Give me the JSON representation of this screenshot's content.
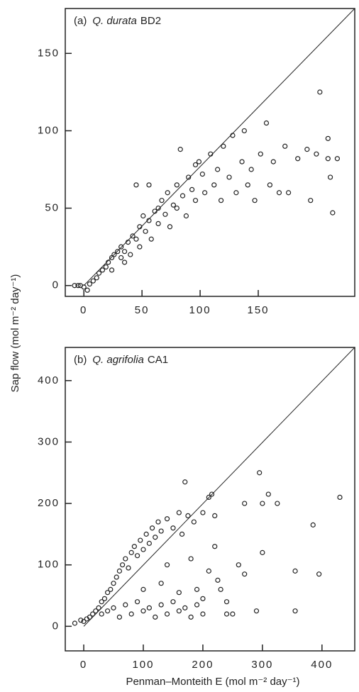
{
  "y_axis_label": "Sap flow (mol m⁻² day⁻¹)",
  "x_axis_label": "Penman–Monteith E (mol m⁻² day⁻¹)",
  "chart_data": [
    {
      "type": "scatter",
      "panel": "(a)",
      "species": "Q. durata",
      "site": "BD2",
      "xlim": [
        -16,
        233
      ],
      "ylim": [
        -7,
        179
      ],
      "xticks": [
        0,
        50,
        100,
        150
      ],
      "yticks": [
        0,
        50,
        100,
        150
      ],
      "color": "#222222",
      "x": [
        -8,
        -5,
        -3,
        0,
        3,
        5,
        8,
        11,
        13,
        16,
        19,
        21,
        24,
        26,
        29,
        32,
        32,
        35,
        38,
        40,
        42,
        45,
        48,
        48,
        51,
        53,
        56,
        58,
        61,
        64,
        64,
        67,
        70,
        72,
        74,
        77,
        80,
        80,
        83,
        85,
        88,
        90,
        93,
        96,
        99,
        102,
        104,
        109,
        112,
        115,
        118,
        120,
        125,
        128,
        131,
        136,
        138,
        141,
        144,
        147,
        152,
        157,
        160,
        163,
        168,
        173,
        176,
        184,
        192,
        195,
        200,
        203,
        210,
        212,
        214,
        210,
        218,
        45,
        56,
        96,
        24,
        35
      ],
      "y": [
        0,
        0,
        0,
        -1,
        -3,
        1,
        3,
        5,
        8,
        10,
        12,
        15,
        18,
        20,
        22,
        25,
        18,
        22,
        28,
        20,
        32,
        30,
        38,
        25,
        45,
        35,
        42,
        30,
        48,
        50,
        40,
        55,
        46,
        60,
        38,
        52,
        65,
        50,
        88,
        58,
        45,
        70,
        62,
        55,
        80,
        72,
        60,
        85,
        65,
        75,
        55,
        90,
        70,
        97,
        60,
        80,
        100,
        65,
        75,
        55,
        85,
        105,
        65,
        80,
        60,
        90,
        60,
        82,
        88,
        55,
        85,
        125,
        82,
        70,
        47,
        95,
        82,
        65,
        65,
        78,
        10,
        15
      ]
    },
    {
      "type": "scatter",
      "panel": "(b)",
      "species": "Q. agrifolia",
      "site": "CA1",
      "xlim": [
        -31,
        455
      ],
      "ylim": [
        -40,
        454
      ],
      "xticks": [
        0,
        100,
        200,
        300,
        400
      ],
      "yticks": [
        0,
        100,
        200,
        300,
        400
      ],
      "color": "#222222",
      "x": [
        -15,
        -5,
        0,
        5,
        10,
        15,
        20,
        25,
        30,
        35,
        40,
        45,
        50,
        55,
        60,
        65,
        70,
        75,
        80,
        85,
        90,
        95,
        100,
        105,
        110,
        115,
        120,
        125,
        130,
        140,
        150,
        160,
        165,
        170,
        175,
        185,
        200,
        210,
        215,
        220,
        270,
        295,
        300,
        310,
        325,
        430,
        30,
        40,
        50,
        60,
        70,
        80,
        90,
        100,
        110,
        120,
        130,
        140,
        150,
        160,
        170,
        180,
        190,
        200,
        210,
        220,
        230,
        240,
        250,
        260,
        270,
        290,
        300,
        355,
        355,
        385,
        395,
        100,
        130,
        160,
        180,
        200,
        225,
        140,
        190,
        240
      ],
      "y": [
        5,
        10,
        8,
        12,
        15,
        20,
        25,
        30,
        40,
        45,
        55,
        60,
        70,
        80,
        90,
        100,
        110,
        95,
        120,
        130,
        115,
        140,
        125,
        150,
        135,
        160,
        145,
        170,
        155,
        175,
        160,
        185,
        150,
        235,
        180,
        170,
        185,
        210,
        215,
        180,
        200,
        250,
        200,
        215,
        200,
        210,
        20,
        25,
        30,
        15,
        35,
        20,
        40,
        25,
        30,
        15,
        35,
        20,
        40,
        25,
        30,
        15,
        35,
        20,
        90,
        130,
        60,
        20,
        20,
        100,
        85,
        25,
        120,
        90,
        25,
        165,
        85,
        60,
        70,
        55,
        110,
        45,
        75,
        100,
        60,
        40
      ]
    }
  ]
}
